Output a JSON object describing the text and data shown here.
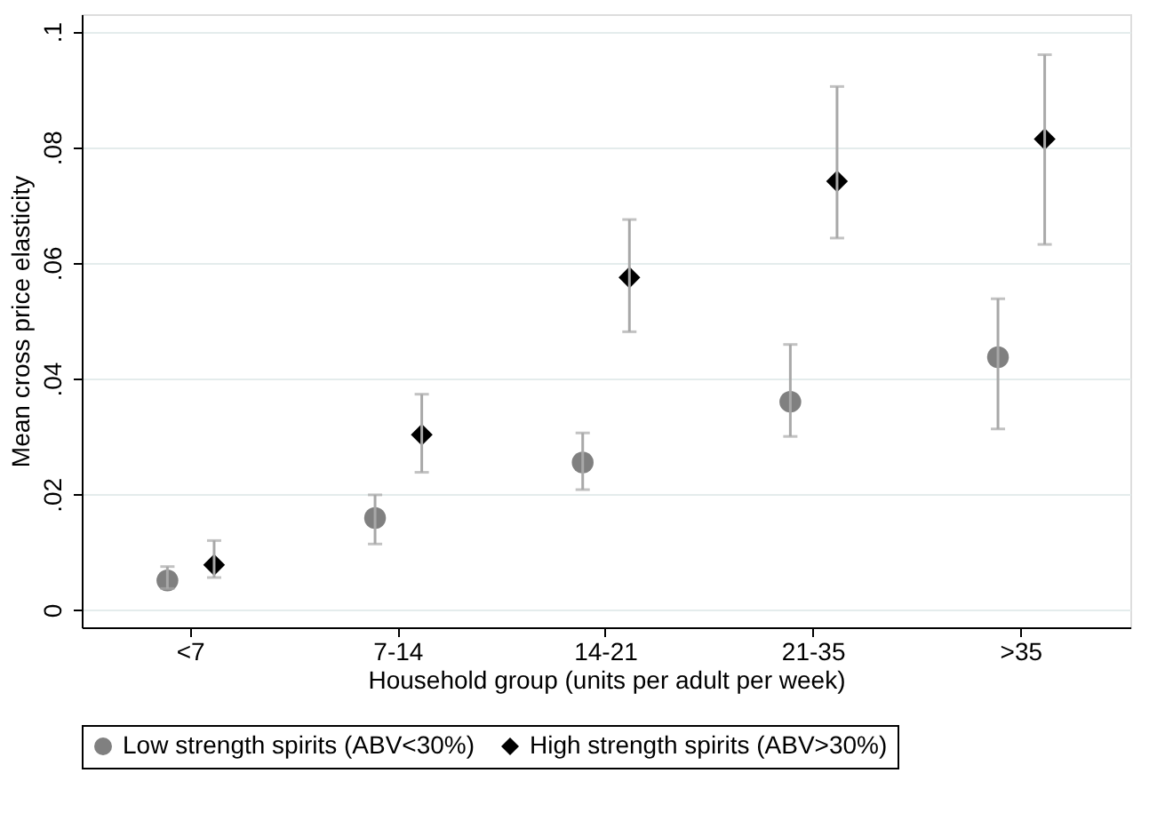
{
  "chart_data": {
    "type": "scatter",
    "xlabel": "Household group (units per adult per week)",
    "ylabel": "Mean cross price elasticity",
    "categories": [
      "<7",
      "7-14",
      "14-21",
      "21-35",
      ">35"
    ],
    "series": [
      {
        "name": "Low strength spirits (ABV<30%)",
        "color": "#808080",
        "marker": "circle",
        "values": [
          0.0051,
          0.0159,
          0.0255,
          0.036,
          0.0437
        ],
        "errors": [
          [
            0.0037,
            0.0075
          ],
          [
            0.0114,
            0.0199
          ],
          [
            0.0208,
            0.0306
          ],
          [
            0.03,
            0.0459
          ],
          [
            0.0313,
            0.0538
          ]
        ]
      },
      {
        "name": "High strength spirits (ABV>30%)",
        "color": "#000000",
        "marker": "diamond",
        "values": [
          0.0078,
          0.0303,
          0.0575,
          0.0741,
          0.0814
        ],
        "errors": [
          [
            0.0056,
            0.012
          ],
          [
            0.0238,
            0.0373
          ],
          [
            0.0481,
            0.0675
          ],
          [
            0.0643,
            0.0905
          ],
          [
            0.0632,
            0.096
          ]
        ]
      }
    ],
    "ylim": [
      -0.003,
      0.103
    ],
    "yticks": [
      0,
      {
        "value": 0.02,
        "label": ".02"
      },
      {
        "value": 0.04,
        "label": ".04"
      },
      {
        "value": 0.06,
        "label": ".06"
      },
      {
        "value": 0.08,
        "label": ".08"
      },
      {
        "value": 0.1,
        "label": ".1"
      }
    ],
    "grid": "y",
    "legend": "bottom"
  }
}
